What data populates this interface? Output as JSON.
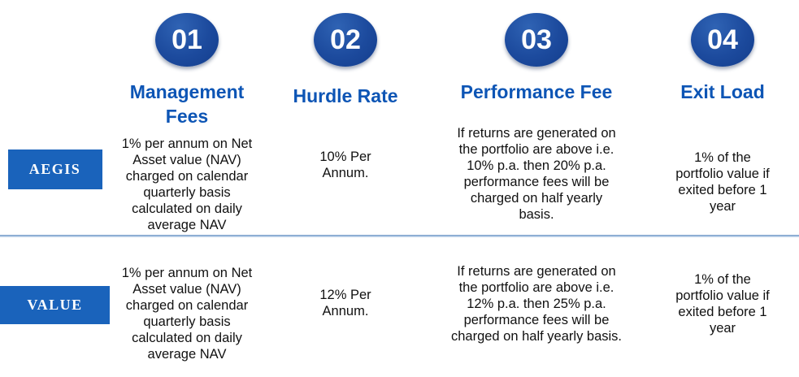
{
  "brand_colors": {
    "circle_blue": "#1c4a9d",
    "heading_blue": "#0d55b5",
    "label_box_blue": "#1a63bb",
    "divider_blue": "#6d95c5",
    "body_text": "#111111"
  },
  "columns": [
    {
      "number": "01",
      "title": "Management\nFees"
    },
    {
      "number": "02",
      "title": "Hurdle Rate"
    },
    {
      "number": "03",
      "title": "Performance Fee"
    },
    {
      "number": "04",
      "title": "Exit Load"
    }
  ],
  "rows": [
    {
      "label": "AEGIS",
      "cells": {
        "management_fees": "1% per annum on Net\nAsset value (NAV)\ncharged  on calendar\nquarterly basis\ncalculated on daily\naverage NAV",
        "hurdle_rate": "10% Per\nAnnum.",
        "performance_fee": "If returns are generated on\nthe portfolio are above i.e.\n10% p.a. then 20% p.a.\nperformance fees will be\ncharged on half yearly\nbasis.",
        "exit_load": "1% of the\nportfolio value if\nexited before 1\nyear"
      }
    },
    {
      "label": "VALUE",
      "cells": {
        "management_fees": "1% per annum on Net\nAsset value (NAV)\ncharged  on calendar\nquarterly basis\ncalculated on daily\naverage NAV",
        "hurdle_rate": "12% Per\nAnnum.",
        "performance_fee": "If returns are generated on\nthe portfolio are above i.e.\n12% p.a. then 25% p.a.\nperformance fees will be\ncharged on half yearly basis.",
        "exit_load": "1% of the\nportfolio value if\nexited before 1\nyear"
      }
    }
  ]
}
